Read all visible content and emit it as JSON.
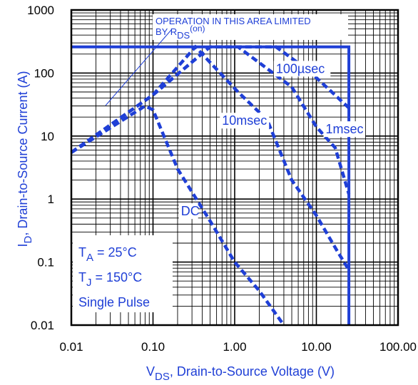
{
  "chart_data": {
    "type": "line",
    "x_scale": "log",
    "y_scale": "log",
    "xlim": [
      0.01,
      100
    ],
    "ylim": [
      0.01,
      1000
    ],
    "grid": true,
    "x_ticks": [
      "0.01",
      "0.10",
      "1.00",
      "10.00",
      "100.00"
    ],
    "y_ticks": [
      "1000",
      "100",
      "10",
      "1",
      "0.1",
      "0.01"
    ],
    "xlabel": {
      "main": "V",
      "sub": "DS",
      "rest": ", Drain-to-Source Voltage (V)"
    },
    "ylabel": {
      "main": "I",
      "sub": "D",
      "rest": ", Drain-to-Source Current (A)"
    },
    "annotation": {
      "line1": "OPERATION IN THIS AREA LIMITED",
      "line2_pre": "BY R",
      "line2_sub": "DS",
      "line2_post": "(on)"
    },
    "conditions": {
      "ta_main": "T",
      "ta_sub": "A",
      "ta_rest": " = 25°C",
      "tj_main": "T",
      "tj_sub": "J",
      "tj_rest": " = 150°C",
      "pulse": "Single Pulse"
    },
    "boundary": {
      "name": "limit",
      "points": [
        [
          0.01,
          260
        ],
        [
          25,
          260
        ],
        [
          25,
          0.01
        ]
      ]
    },
    "series": [
      {
        "name": "100µsec",
        "label_at": [
          3.2,
          100
        ],
        "points": [
          [
            0.01,
            5.5
          ],
          [
            0.1,
            45
          ],
          [
            0.5,
            260
          ],
          [
            3.2,
            260
          ],
          [
            8,
            110
          ],
          [
            25,
            28
          ]
        ]
      },
      {
        "name": "1msec",
        "label_at": [
          13,
          11
        ],
        "points": [
          [
            0.01,
            5.5
          ],
          [
            0.1,
            45
          ],
          [
            0.5,
            260
          ],
          [
            1.1,
            260
          ],
          [
            5,
            60
          ],
          [
            10,
            14
          ],
          [
            17,
            6.5
          ],
          [
            25,
            1.2
          ]
        ]
      },
      {
        "name": "10msec",
        "label_at": [
          0.7,
          15
        ],
        "points": [
          [
            0.01,
            5.5
          ],
          [
            0.1,
            45
          ],
          [
            0.33,
            260
          ],
          [
            1.1,
            50
          ],
          [
            2.5,
            18
          ],
          [
            5,
            2
          ],
          [
            10,
            0.55
          ],
          [
            18,
            0.15
          ],
          [
            25,
            0.075
          ]
        ]
      },
      {
        "name": "DC",
        "label_at": [
          0.22,
          0.55
        ],
        "points": [
          [
            0.01,
            5.5
          ],
          [
            0.08,
            30
          ],
          [
            0.1,
            26
          ],
          [
            0.2,
            3
          ],
          [
            0.5,
            0.45
          ],
          [
            1,
            0.1
          ],
          [
            2,
            0.035
          ],
          [
            4,
            0.01
          ]
        ]
      }
    ],
    "colors": {
      "series": "#1f3fd6",
      "grid": "#000000"
    }
  }
}
